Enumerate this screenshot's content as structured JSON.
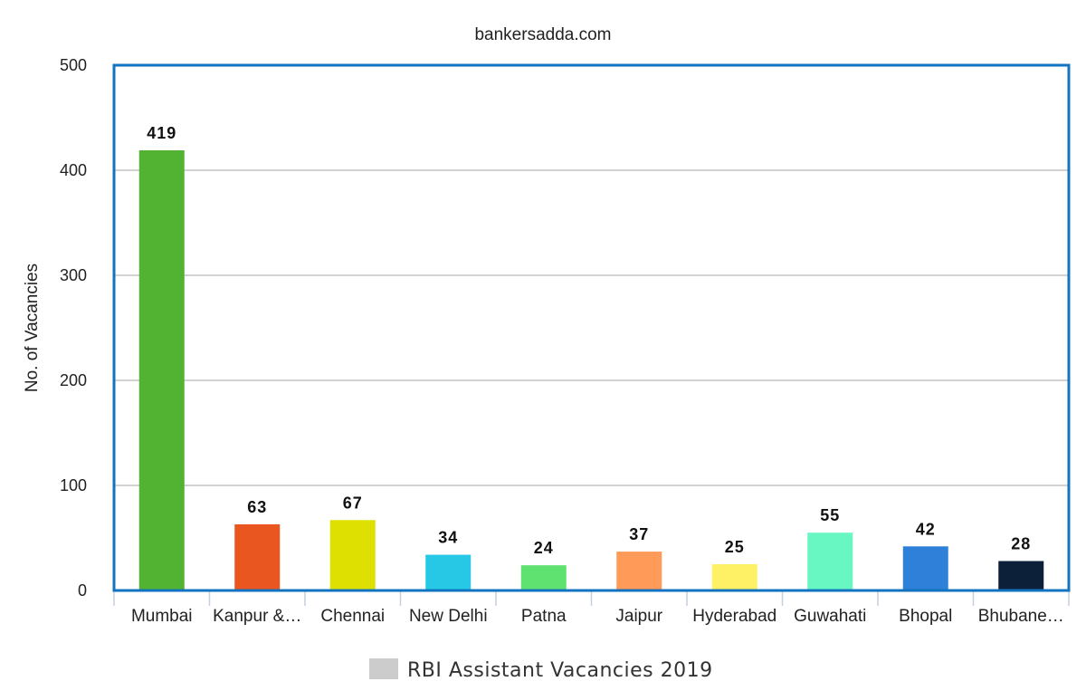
{
  "chart_data": {
    "type": "bar",
    "title": "",
    "subtitle": "bankersadda.com",
    "xlabel": "",
    "ylabel": "No. of Vacancies",
    "ylim": [
      0,
      500
    ],
    "yticks": [
      "0",
      "100",
      "200",
      "300",
      "400",
      "500"
    ],
    "ytick_values": [
      0,
      100,
      200,
      300,
      400,
      500
    ],
    "categories": [
      "Mumbai",
      "Kanpur &…",
      "Chennai",
      "New Delhi",
      "Patna",
      "Jaipur",
      "Hyderabad",
      "Guwahati",
      "Bhopal",
      "Bhubane…"
    ],
    "series": [
      {
        "name": "RBI Assistant Vacancies 2019",
        "values": [
          419,
          63,
          67,
          34,
          24,
          37,
          25,
          55,
          42,
          28
        ],
        "data_labels": [
          "419",
          "63",
          "67",
          "34",
          "24",
          "37",
          "25",
          "55",
          "42",
          "28"
        ],
        "colors": [
          "#52b332",
          "#e9561f",
          "#dde000",
          "#27c8e6",
          "#5fe26f",
          "#ff9a58",
          "#fff165",
          "#68f7c2",
          "#2f80d9",
          "#0c2139"
        ]
      }
    ],
    "legend": {
      "position": "bottom-center",
      "swatch_color": "#cccccc"
    },
    "grid": true,
    "frame_color": "#1273c0"
  }
}
